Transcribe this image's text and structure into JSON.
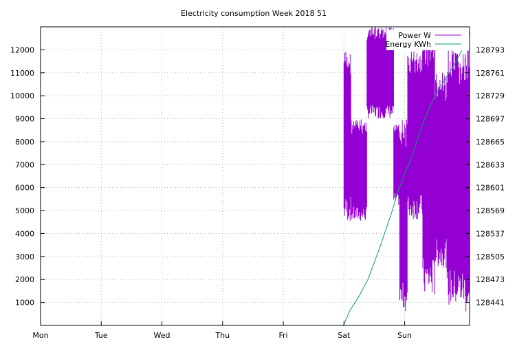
{
  "chart_data": {
    "type": "line",
    "title": "Electricity consumption Week 2018 51",
    "xlabel": "",
    "ylabel": "",
    "x_ticks": [
      "Mon",
      "Tue",
      "Wed",
      "Thu",
      "Fri",
      "Sat",
      "Sun"
    ],
    "x_range_days": [
      0,
      7.07
    ],
    "y_left": {
      "ticks": [
        1000,
        2000,
        3000,
        4000,
        5000,
        6000,
        7000,
        8000,
        9000,
        10000,
        11000,
        12000
      ],
      "range": [
        0,
        13000
      ]
    },
    "y_right": {
      "ticks": [
        128441,
        128473,
        128505,
        128537,
        128569,
        128601,
        128633,
        128665,
        128697,
        128729,
        128761,
        128793
      ],
      "range": [
        128409,
        128825
      ]
    },
    "grid": true,
    "legend_position": "top-right",
    "series": [
      {
        "name": "Power W",
        "axis": "left",
        "color": "#9400d3",
        "style": "dense-oscillating",
        "segments": [
          {
            "x_start": 5.0,
            "x_end": 5.12,
            "low": 4500,
            "high": 12000
          },
          {
            "x_start": 5.12,
            "x_end": 5.38,
            "low": 4500,
            "high": 9000
          },
          {
            "x_start": 5.38,
            "x_end": 5.82,
            "low": 9000,
            "high": 13000
          },
          {
            "x_start": 5.82,
            "x_end": 5.92,
            "low": 5200,
            "high": 9000
          },
          {
            "x_start": 5.92,
            "x_end": 6.05,
            "low": 600,
            "high": 9000
          },
          {
            "x_start": 6.05,
            "x_end": 6.3,
            "low": 4600,
            "high": 12000
          },
          {
            "x_start": 6.3,
            "x_end": 6.5,
            "low": 1200,
            "high": 13000
          },
          {
            "x_start": 6.5,
            "x_end": 6.7,
            "low": 2500,
            "high": 11000
          },
          {
            "x_start": 6.7,
            "x_end": 7.0,
            "low": 800,
            "high": 12000
          },
          {
            "x_start": 7.0,
            "x_end": 7.07,
            "low": 500,
            "high": 12000
          }
        ]
      },
      {
        "name": "Energy KWh",
        "axis": "right",
        "color": "#009e73",
        "x": [
          4.99,
          5.1,
          5.25,
          5.4,
          5.6,
          5.8,
          5.9,
          6.0,
          6.1,
          6.2,
          6.3,
          6.45,
          6.6,
          6.75,
          6.9,
          7.0,
          7.07
        ],
        "y": [
          128409,
          128430,
          128450,
          128474,
          128520,
          128570,
          128598,
          128620,
          128640,
          128665,
          128690,
          128720,
          128743,
          128763,
          128785,
          128803,
          128817
        ]
      }
    ]
  }
}
